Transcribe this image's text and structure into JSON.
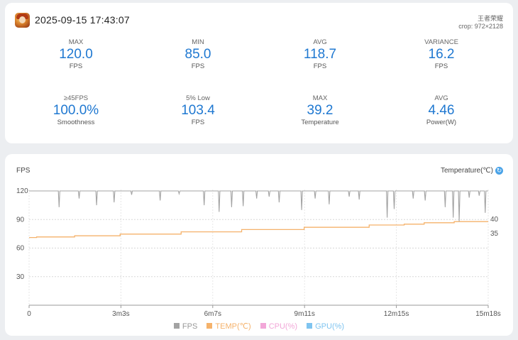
{
  "header": {
    "datetime": "2025-09-15 17:43:07",
    "game_name": "王者荣耀",
    "crop": "crop: 972×2128"
  },
  "stats": [
    {
      "label": "MAX",
      "value": "120.0",
      "unit": "FPS"
    },
    {
      "label": "MIN",
      "value": "85.0",
      "unit": "FPS"
    },
    {
      "label": "AVG",
      "value": "118.7",
      "unit": "FPS"
    },
    {
      "label": "VARIANCE",
      "value": "16.2",
      "unit": "FPS"
    },
    {
      "label": "≥45FPS",
      "value": "100.0%",
      "unit": "Smoothness"
    },
    {
      "label": "5% Low",
      "value": "103.4",
      "unit": "FPS"
    },
    {
      "label": "MAX",
      "value": "39.2",
      "unit": "Temperature"
    },
    {
      "label": "AVG",
      "value": "4.46",
      "unit": "Power(W)"
    }
  ],
  "chart": {
    "left_title": "FPS",
    "right_title": "Temperature(℃)"
  },
  "colors": {
    "accent": "#1f78d1",
    "fps": "#a3a3a3",
    "temp": "#f5b26b",
    "cpu": "#f2a7d8",
    "gpu": "#7fc4f0"
  },
  "chart_data": {
    "type": "line",
    "ylabel_left": "FPS",
    "ylabel_right": "Temperature(℃)",
    "y_ticks": [
      "120",
      "90",
      "60",
      "30"
    ],
    "y_right_ticks": [
      "40",
      "35"
    ],
    "x_ticks": [
      "0",
      "3m3s",
      "6m7s",
      "9m11s",
      "12m15s",
      "15m18s"
    ],
    "ylim": [
      0,
      120
    ],
    "y_right_values": [
      40,
      35
    ],
    "xlim_seconds": [
      0,
      918
    ],
    "grid": true,
    "legend_position": "bottom",
    "series": [
      {
        "name": "FPS",
        "color": "#a3a3a3",
        "baseline": 120,
        "dips": [
          [
            60,
            103
          ],
          [
            100,
            112
          ],
          [
            135,
            105
          ],
          [
            170,
            108
          ],
          [
            205,
            116
          ],
          [
            262,
            110
          ],
          [
            300,
            117
          ],
          [
            350,
            105
          ],
          [
            380,
            98
          ],
          [
            405,
            103
          ],
          [
            428,
            104
          ],
          [
            455,
            112
          ],
          [
            480,
            114
          ],
          [
            500,
            108
          ],
          [
            545,
            100
          ],
          [
            572,
            112
          ],
          [
            600,
            106
          ],
          [
            640,
            114
          ],
          [
            660,
            111
          ],
          [
            716,
            92
          ],
          [
            730,
            101
          ],
          [
            768,
            112
          ],
          [
            792,
            110
          ],
          [
            832,
            103
          ],
          [
            848,
            92
          ],
          [
            860,
            88
          ],
          [
            880,
            113
          ],
          [
            900,
            115
          ],
          [
            912,
            97
          ]
        ]
      },
      {
        "name": "TEMP(℃)",
        "color": "#f5b26b",
        "axis": "right",
        "steps": [
          [
            0,
            33.6
          ],
          [
            15,
            33.8
          ],
          [
            91,
            34.2
          ],
          [
            182,
            34.8
          ],
          [
            304,
            35.6
          ],
          [
            425,
            36.4
          ],
          [
            550,
            37.2
          ],
          [
            680,
            38.0
          ],
          [
            750,
            38.3
          ],
          [
            790,
            38.8
          ],
          [
            850,
            39.2
          ],
          [
            918,
            39.2
          ]
        ]
      },
      {
        "name": "CPU(%)",
        "color": "#f2a7d8"
      },
      {
        "name": "GPU(%)",
        "color": "#7fc4f0"
      }
    ]
  }
}
